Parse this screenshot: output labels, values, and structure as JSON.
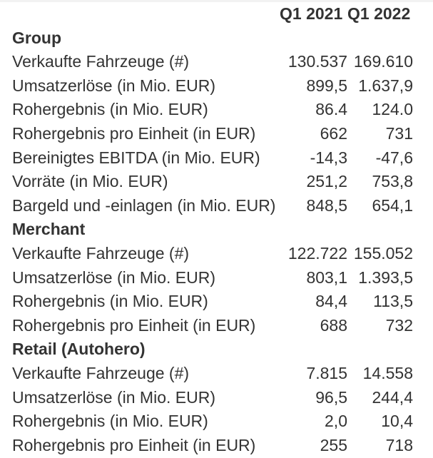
{
  "colors": {
    "text": "#333333",
    "top_border": "#f2f2f2",
    "background": "#ffffff"
  },
  "table": {
    "columns": [
      "Q1 2021",
      "Q1 2022"
    ],
    "sections": [
      {
        "name": "Group",
        "rows": [
          {
            "label": "Verkaufte Fahrzeuge (#)",
            "q1_2021": "130.537",
            "q1_2022": "169.610"
          },
          {
            "label": "Umsatzerlöse (in Mio. EUR)",
            "q1_2021": "899,5",
            "q1_2022": "1.637,9"
          },
          {
            "label": "Rohergebnis (in Mio. EUR)",
            "q1_2021": "86.4",
            "q1_2022": "124.0"
          },
          {
            "label": "Rohergebnis pro Einheit (in EUR)",
            "q1_2021": "662",
            "q1_2022": "731"
          },
          {
            "label": "Bereinigtes EBITDA (in Mio. EUR)",
            "q1_2021": "-14,3",
            "q1_2022": "-47,6"
          },
          {
            "label": "Vorräte (in Mio. EUR)",
            "q1_2021": "251,2",
            "q1_2022": "753,8"
          },
          {
            "label": "Bargeld und -einlagen (in Mio. EUR)",
            "q1_2021": "848,5",
            "q1_2022": "654,1"
          }
        ]
      },
      {
        "name": "Merchant",
        "rows": [
          {
            "label": "Verkaufte Fahrzeuge (#)",
            "q1_2021": "122.722",
            "q1_2022": "155.052"
          },
          {
            "label": "Umsatzerlöse (in Mio. EUR)",
            "q1_2021": "803,1",
            "q1_2022": "1.393,5"
          },
          {
            "label": "Rohergebnis (in Mio. EUR)",
            "q1_2021": "84,4",
            "q1_2022": "113,5"
          },
          {
            "label": "Rohergebnis pro Einheit (in EUR)",
            "q1_2021": "688",
            "q1_2022": "732"
          }
        ]
      },
      {
        "name": "Retail (Autohero)",
        "rows": [
          {
            "label": "Verkaufte Fahrzeuge (#)",
            "q1_2021": "7.815",
            "q1_2022": "14.558"
          },
          {
            "label": "Umsatzerlöse (in Mio. EUR)",
            "q1_2021": "96,5",
            "q1_2022": "244,4"
          },
          {
            "label": "Rohergebnis (in Mio. EUR)",
            "q1_2021": "2,0",
            "q1_2022": "10,4"
          },
          {
            "label": "Rohergebnis pro Einheit (in EUR)",
            "q1_2021": "255",
            "q1_2022": "718"
          }
        ]
      }
    ]
  }
}
